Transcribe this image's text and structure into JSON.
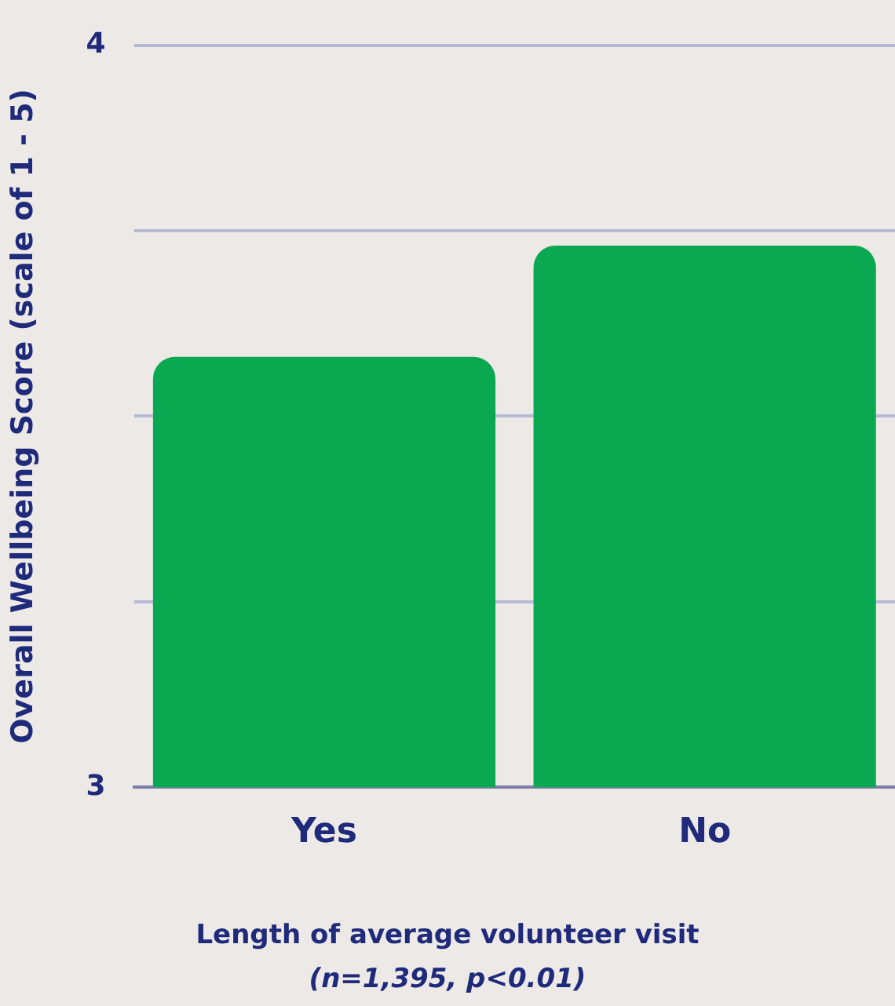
{
  "chart_data": {
    "type": "bar",
    "xlabel": "Length of average volunteer visit",
    "ylabel": "Overall Wellbeing Score (scale of 1 - 5)",
    "annotations": [
      "(n=1,395, p<0.01)"
    ],
    "categories": [
      "Yes",
      "No"
    ],
    "values": [
      3.58,
      3.73
    ],
    "color": "#0aa851",
    "ylim": [
      3,
      4
    ],
    "yticks": [
      3,
      {
        "value": 3.25,
        "label": null
      },
      {
        "value": 3.5,
        "label": null
      },
      {
        "value": 3.75,
        "label": null
      },
      4
    ],
    "grid": "y"
  }
}
